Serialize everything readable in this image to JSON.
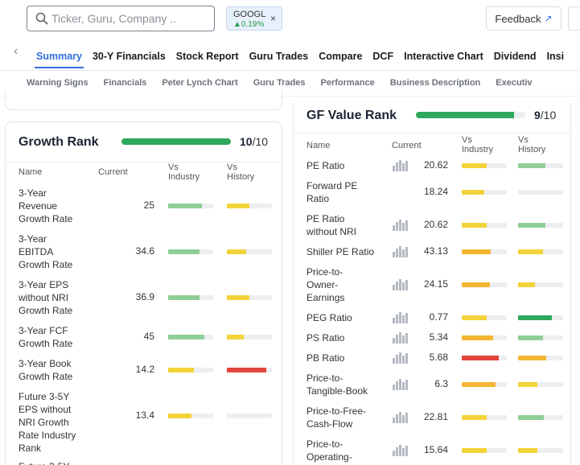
{
  "search": {
    "placeholder": "Ticker, Guru, Company .."
  },
  "ticker_chip": {
    "symbol": "GOOGL",
    "change": "▲0.19%",
    "close": "×"
  },
  "feedback": {
    "label": "Feedback",
    "arrow": "↗"
  },
  "nav": {
    "back": "‹",
    "tabs": [
      "Summary",
      "30-Y Financials",
      "Stock Report",
      "Guru Trades",
      "Compare",
      "DCF",
      "Interactive Chart",
      "Dividend",
      "Insi"
    ],
    "active_tab": "Summary"
  },
  "subnav": {
    "items": [
      "Warning Signs",
      "Financials",
      "Peter Lynch Chart",
      "Guru Trades",
      "Performance",
      "Business Description",
      "Executiv"
    ]
  },
  "colors": {
    "green": "#2ea85d",
    "light_green": "#8fce96",
    "yellow": "#f3d33a",
    "orange": "#f4b533",
    "red": "#e2453c",
    "grey": "#eceef1",
    "accent": "#2f6fdd"
  },
  "growth_rank": {
    "title": "Growth Rank",
    "score": "10",
    "max": "/10",
    "fill": 1.0,
    "headers": {
      "name": "Name",
      "current": "Current",
      "vs_industry": "Vs\nIndustry",
      "vs_history": "Vs\nHistory"
    },
    "rows": [
      {
        "name": "3-Year\nRevenue\nGrowth Rate",
        "current": "25",
        "industry": {
          "fill": 0.75,
          "color": "light_green"
        },
        "history": {
          "fill": 0.5,
          "color": "yellow"
        }
      },
      {
        "name": "3-Year\nEBITDA\nGrowth Rate",
        "current": "34.6",
        "industry": {
          "fill": 0.7,
          "color": "light_green"
        },
        "history": {
          "fill": 0.42,
          "color": "yellow"
        }
      },
      {
        "name": "3-Year EPS\nwithout NRI\nGrowth Rate",
        "current": "36.9",
        "industry": {
          "fill": 0.7,
          "color": "light_green"
        },
        "history": {
          "fill": 0.5,
          "color": "yellow"
        }
      },
      {
        "name": "3-Year FCF\nGrowth Rate",
        "current": "45",
        "industry": {
          "fill": 0.8,
          "color": "light_green"
        },
        "history": {
          "fill": 0.38,
          "color": "yellow"
        }
      },
      {
        "name": "3-Year Book\nGrowth Rate",
        "current": "14.2",
        "industry": {
          "fill": 0.58,
          "color": "yellow"
        },
        "history": {
          "fill": 0.88,
          "color": "red"
        }
      },
      {
        "name": "Future 3-5Y\nEPS without\nNRI Growth\nRate Industry\nRank",
        "current": "13.4",
        "industry": {
          "fill": 0.52,
          "color": "yellow"
        },
        "history": {
          "fill": 0.0,
          "color": "grey"
        }
      },
      {
        "name": "Future 3-5Y",
        "current": "",
        "industry": {
          "fill": 0,
          "color": "grey"
        },
        "history": {
          "fill": 0,
          "color": "grey"
        }
      }
    ]
  },
  "gf_value_rank": {
    "title": "GF Value Rank",
    "score": "9",
    "max": "/10",
    "fill": 0.9,
    "headers": {
      "name": "Name",
      "current": "Current",
      "vs_industry": "Vs\nIndustry",
      "vs_history": "Vs\nHistory"
    },
    "rows": [
      {
        "name": "PE Ratio",
        "chart": true,
        "current": "20.62",
        "industry": {
          "fill": 0.55,
          "color": "yellow"
        },
        "history": {
          "fill": 0.6,
          "color": "light_green"
        }
      },
      {
        "name": "Forward PE\nRatio",
        "chart": false,
        "current": "18.24",
        "industry": {
          "fill": 0.5,
          "color": "yellow"
        },
        "history": {
          "fill": 0.0,
          "color": "grey"
        }
      },
      {
        "name": "PE Ratio\nwithout NRI",
        "chart": true,
        "current": "20.62",
        "industry": {
          "fill": 0.55,
          "color": "yellow"
        },
        "history": {
          "fill": 0.6,
          "color": "light_green"
        }
      },
      {
        "name": "Shiller PE Ratio",
        "chart": true,
        "current": "43.13",
        "industry": {
          "fill": 0.65,
          "color": "orange"
        },
        "history": {
          "fill": 0.55,
          "color": "yellow"
        }
      },
      {
        "name": "Price-to-\nOwner-\nEarnings",
        "chart": true,
        "current": "24.15",
        "industry": {
          "fill": 0.62,
          "color": "orange"
        },
        "history": {
          "fill": 0.38,
          "color": "yellow"
        }
      },
      {
        "name": "PEG Ratio",
        "chart": true,
        "current": "0.77",
        "industry": {
          "fill": 0.55,
          "color": "yellow"
        },
        "history": {
          "fill": 0.75,
          "color": "green"
        }
      },
      {
        "name": "PS Ratio",
        "chart": true,
        "current": "5.34",
        "industry": {
          "fill": 0.7,
          "color": "orange"
        },
        "history": {
          "fill": 0.55,
          "color": "light_green"
        }
      },
      {
        "name": "PB Ratio",
        "chart": true,
        "current": "5.68",
        "industry": {
          "fill": 0.82,
          "color": "red"
        },
        "history": {
          "fill": 0.62,
          "color": "orange"
        }
      },
      {
        "name": "Price-to-\nTangible-Book",
        "chart": true,
        "current": "6.3",
        "industry": {
          "fill": 0.75,
          "color": "orange"
        },
        "history": {
          "fill": 0.42,
          "color": "yellow"
        }
      },
      {
        "name": "Price-to-Free-\nCash-Flow",
        "chart": true,
        "current": "22.81",
        "industry": {
          "fill": 0.55,
          "color": "yellow"
        },
        "history": {
          "fill": 0.58,
          "color": "light_green"
        }
      },
      {
        "name": "Price-to-\nOperating-",
        "chart": true,
        "current": "15.64",
        "industry": {
          "fill": 0.55,
          "color": "yellow"
        },
        "history": {
          "fill": 0.42,
          "color": "yellow"
        }
      }
    ]
  }
}
